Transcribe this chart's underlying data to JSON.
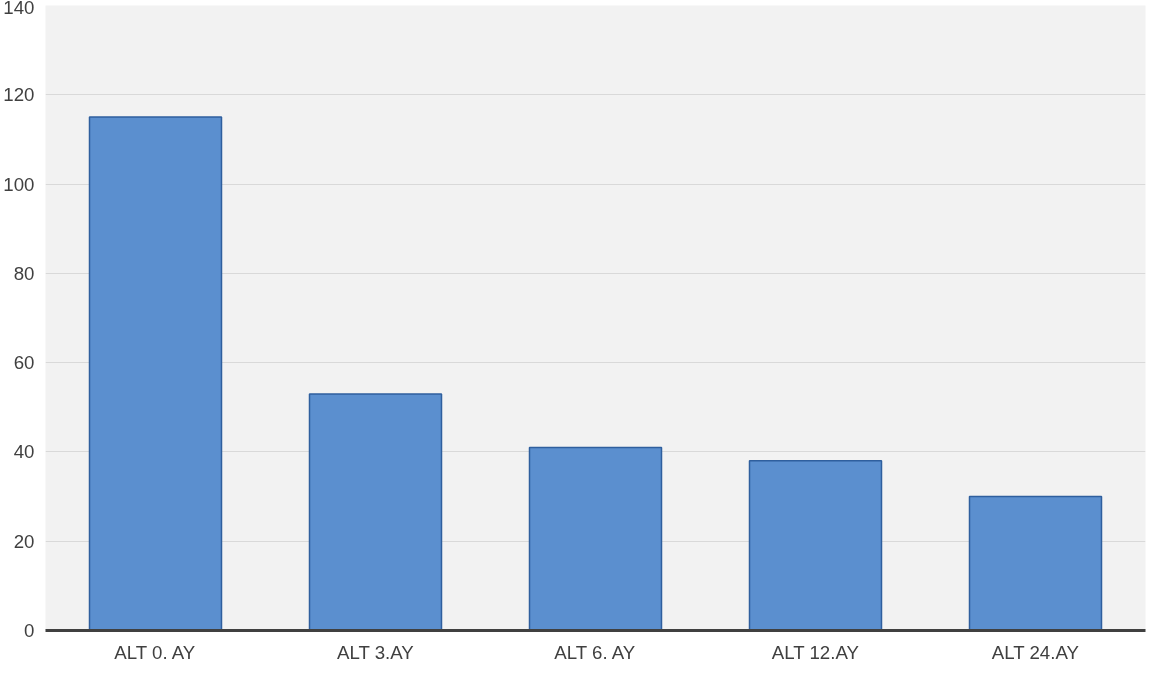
{
  "chart_data": {
    "type": "bar",
    "categories": [
      "ALT 0. AY",
      "ALT 3.AY",
      "ALT 6. AY",
      "ALT 12.AY",
      "ALT 24.AY"
    ],
    "values": [
      115,
      53,
      41,
      38,
      30
    ],
    "color": "#5b8fcf",
    "ylim": [
      0,
      140
    ],
    "yticks": [
      0,
      20,
      40,
      60,
      80,
      100,
      120,
      140
    ],
    "grid": "y"
  }
}
